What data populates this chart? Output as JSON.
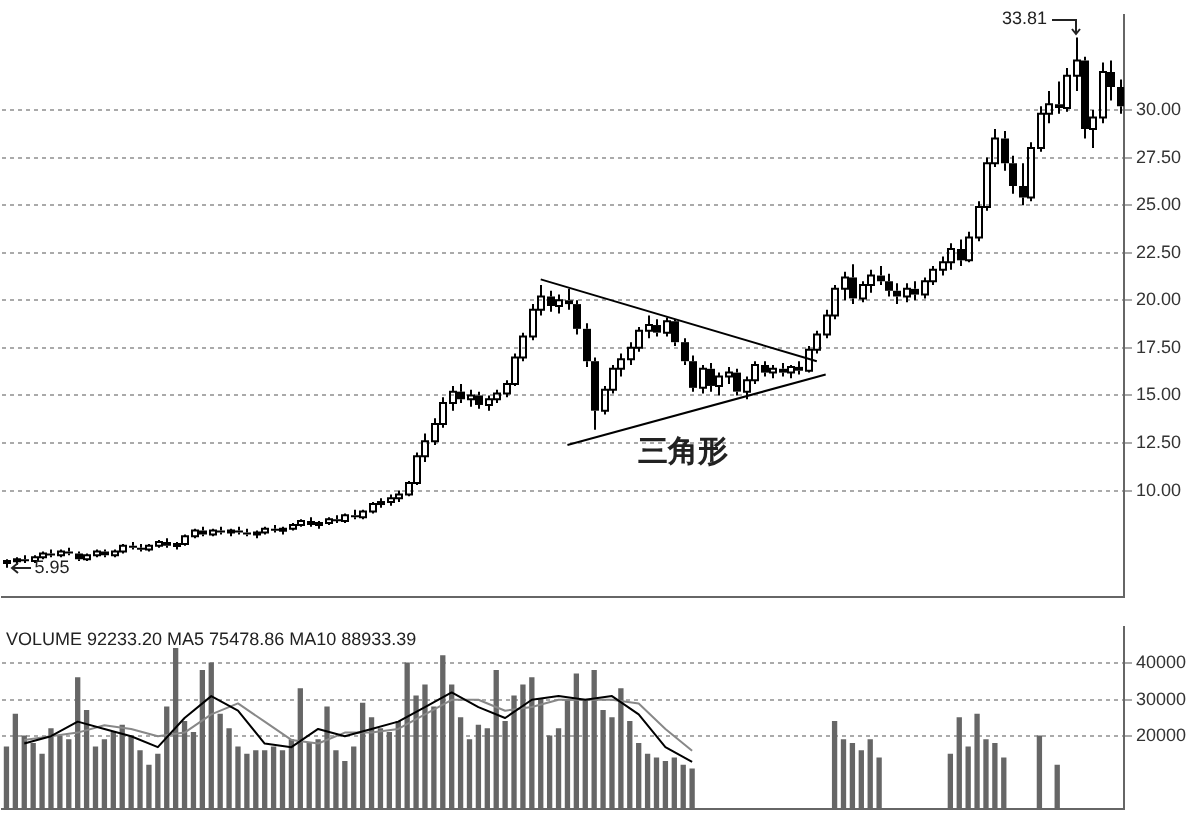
{
  "chart_data": [
    {
      "type": "candlestick",
      "categories": [
        null,
        null,
        null,
        null,
        null,
        null,
        null,
        null,
        null,
        null,
        null,
        null,
        null,
        null,
        null,
        null,
        null,
        null,
        null,
        null,
        null,
        null,
        null,
        null,
        null,
        null,
        null,
        null,
        null,
        null,
        null,
        null,
        null,
        null,
        null,
        null,
        null,
        null,
        null,
        null,
        null,
        null,
        null,
        null,
        null,
        null,
        null,
        null,
        null,
        null,
        null,
        null,
        null,
        null,
        null,
        null,
        null,
        null,
        null,
        null,
        null,
        null,
        null,
        null,
        null,
        null,
        null,
        null,
        null,
        null,
        null,
        null,
        null,
        null,
        null,
        null,
        null,
        null,
        null,
        null,
        null,
        null,
        null,
        null,
        null,
        null,
        null,
        null,
        null,
        null,
        null,
        null,
        null,
        null,
        null,
        null,
        null,
        null,
        null,
        null,
        null,
        null,
        null,
        null,
        null,
        null,
        null,
        null,
        null,
        null,
        null,
        null,
        null,
        null,
        null,
        null,
        null,
        null,
        null,
        null,
        null,
        null,
        null,
        null,
        null,
        null
      ],
      "ohlc": [
        [
          6.2,
          6.4,
          5.95,
          6.3
        ],
        [
          6.3,
          6.5,
          6.1,
          6.4
        ],
        [
          6.4,
          6.6,
          6.2,
          6.3
        ],
        [
          6.3,
          6.6,
          6.2,
          6.5
        ],
        [
          6.5,
          6.8,
          6.4,
          6.7
        ],
        [
          6.7,
          6.9,
          6.5,
          6.6
        ],
        [
          6.6,
          6.9,
          6.5,
          6.8
        ],
        [
          6.8,
          7.0,
          6.6,
          6.7
        ],
        [
          6.7,
          6.8,
          6.3,
          6.4
        ],
        [
          6.4,
          6.7,
          6.3,
          6.6
        ],
        [
          6.6,
          6.9,
          6.5,
          6.8
        ],
        [
          6.8,
          6.9,
          6.5,
          6.6
        ],
        [
          6.6,
          6.9,
          6.5,
          6.8
        ],
        [
          6.8,
          7.2,
          6.7,
          7.1
        ],
        [
          7.1,
          7.3,
          6.9,
          7.0
        ],
        [
          7.0,
          7.2,
          6.8,
          6.9
        ],
        [
          6.9,
          7.2,
          6.8,
          7.1
        ],
        [
          7.1,
          7.4,
          7.0,
          7.3
        ],
        [
          7.3,
          7.5,
          7.0,
          7.1
        ],
        [
          7.1,
          7.3,
          6.9,
          7.2
        ],
        [
          7.2,
          7.7,
          7.1,
          7.6
        ],
        [
          7.6,
          8.0,
          7.5,
          7.9
        ],
        [
          7.9,
          8.1,
          7.6,
          7.7
        ],
        [
          7.7,
          8.0,
          7.6,
          7.9
        ],
        [
          7.9,
          8.1,
          7.7,
          7.8
        ],
        [
          7.8,
          8.0,
          7.6,
          7.9
        ],
        [
          7.9,
          8.1,
          7.7,
          7.8
        ],
        [
          7.8,
          8.0,
          7.6,
          7.7
        ],
        [
          7.7,
          7.9,
          7.5,
          7.8
        ],
        [
          7.8,
          8.1,
          7.7,
          8.0
        ],
        [
          8.0,
          8.2,
          7.8,
          7.9
        ],
        [
          7.9,
          8.1,
          7.7,
          8.0
        ],
        [
          8.0,
          8.3,
          7.9,
          8.2
        ],
        [
          8.2,
          8.5,
          8.1,
          8.4
        ],
        [
          8.4,
          8.6,
          8.1,
          8.2
        ],
        [
          8.2,
          8.4,
          8.0,
          8.3
        ],
        [
          8.3,
          8.6,
          8.2,
          8.5
        ],
        [
          8.5,
          8.7,
          8.3,
          8.4
        ],
        [
          8.4,
          8.8,
          8.3,
          8.7
        ],
        [
          8.7,
          9.0,
          8.5,
          8.6
        ],
        [
          8.6,
          9.0,
          8.5,
          8.9
        ],
        [
          8.9,
          9.4,
          8.8,
          9.3
        ],
        [
          9.3,
          9.6,
          9.1,
          9.4
        ],
        [
          9.4,
          9.8,
          9.2,
          9.6
        ],
        [
          9.6,
          10.0,
          9.4,
          9.8
        ],
        [
          9.8,
          10.5,
          9.7,
          10.4
        ],
        [
          10.4,
          12.0,
          10.3,
          11.8
        ],
        [
          11.8,
          13.0,
          11.5,
          12.6
        ],
        [
          12.6,
          13.8,
          12.4,
          13.5
        ],
        [
          13.5,
          14.9,
          13.3,
          14.6
        ],
        [
          14.6,
          15.5,
          14.2,
          15.2
        ],
        [
          15.2,
          15.6,
          14.6,
          14.8
        ],
        [
          14.8,
          15.3,
          14.4,
          15.0
        ],
        [
          15.0,
          15.2,
          14.3,
          14.5
        ],
        [
          14.5,
          15.0,
          14.2,
          14.8
        ],
        [
          14.8,
          15.3,
          14.6,
          15.1
        ],
        [
          15.1,
          15.8,
          14.9,
          15.6
        ],
        [
          15.6,
          17.2,
          15.5,
          17.0
        ],
        [
          17.0,
          18.3,
          16.8,
          18.1
        ],
        [
          18.1,
          19.8,
          17.9,
          19.5
        ],
        [
          19.5,
          20.8,
          19.2,
          20.2
        ],
        [
          20.2,
          20.5,
          19.4,
          19.7
        ],
        [
          19.7,
          20.3,
          19.3,
          20.0
        ],
        [
          20.0,
          20.6,
          19.5,
          19.8
        ],
        [
          19.8,
          20.0,
          18.2,
          18.5
        ],
        [
          18.5,
          18.8,
          16.5,
          16.8
        ],
        [
          16.8,
          17.0,
          13.2,
          14.2
        ],
        [
          14.2,
          15.5,
          14.0,
          15.3
        ],
        [
          15.3,
          16.6,
          15.1,
          16.4
        ],
        [
          16.4,
          17.2,
          16.0,
          16.9
        ],
        [
          16.9,
          17.8,
          16.6,
          17.5
        ],
        [
          17.5,
          18.6,
          17.3,
          18.4
        ],
        [
          18.4,
          19.2,
          18.0,
          18.7
        ],
        [
          18.7,
          19.0,
          18.1,
          18.3
        ],
        [
          18.3,
          19.1,
          18.1,
          18.9
        ],
        [
          18.9,
          19.0,
          17.6,
          17.8
        ],
        [
          17.8,
          18.0,
          16.6,
          16.8
        ],
        [
          16.8,
          17.1,
          15.2,
          15.4
        ],
        [
          15.4,
          16.6,
          15.1,
          16.4
        ],
        [
          16.4,
          16.7,
          15.2,
          15.5
        ],
        [
          15.5,
          16.2,
          15.0,
          16.0
        ],
        [
          16.0,
          16.5,
          15.6,
          16.2
        ],
        [
          16.2,
          16.4,
          15.0,
          15.2
        ],
        [
          15.2,
          16.0,
          14.8,
          15.8
        ],
        [
          15.8,
          16.8,
          15.6,
          16.6
        ],
        [
          16.6,
          16.8,
          16.0,
          16.2
        ],
        [
          16.2,
          16.6,
          15.9,
          16.4
        ],
        [
          16.4,
          16.7,
          16.0,
          16.2
        ],
        [
          16.2,
          16.6,
          15.9,
          16.5
        ],
        [
          16.5,
          16.8,
          16.1,
          16.3
        ],
        [
          16.3,
          17.6,
          16.2,
          17.4
        ],
        [
          17.4,
          18.4,
          17.2,
          18.2
        ],
        [
          18.2,
          19.5,
          18.0,
          19.2
        ],
        [
          19.2,
          20.8,
          19.0,
          20.6
        ],
        [
          20.6,
          21.5,
          20.0,
          21.2
        ],
        [
          21.2,
          21.9,
          19.8,
          20.1
        ],
        [
          20.1,
          21.0,
          19.9,
          20.8
        ],
        [
          20.8,
          21.6,
          20.4,
          21.3
        ],
        [
          21.3,
          21.8,
          20.8,
          21.0
        ],
        [
          21.0,
          21.4,
          20.2,
          20.5
        ],
        [
          20.5,
          20.9,
          19.8,
          20.2
        ],
        [
          20.2,
          20.9,
          19.9,
          20.6
        ],
        [
          20.6,
          21.0,
          20.0,
          20.3
        ],
        [
          20.3,
          21.2,
          20.1,
          21.0
        ],
        [
          21.0,
          21.8,
          20.8,
          21.6
        ],
        [
          21.6,
          22.3,
          21.3,
          22.0
        ],
        [
          22.0,
          23.0,
          21.6,
          22.7
        ],
        [
          22.7,
          23.2,
          21.8,
          22.1
        ],
        [
          22.1,
          23.6,
          22.0,
          23.3
        ],
        [
          23.3,
          25.2,
          23.1,
          24.9
        ],
        [
          24.9,
          27.5,
          24.7,
          27.2
        ],
        [
          27.2,
          29.0,
          27.0,
          28.5
        ],
        [
          28.5,
          28.9,
          26.8,
          27.2
        ],
        [
          27.2,
          27.6,
          25.6,
          26.0
        ],
        [
          26.0,
          27.2,
          25.0,
          25.4
        ],
        [
          25.4,
          28.3,
          25.2,
          28.0
        ],
        [
          28.0,
          30.2,
          27.8,
          29.8
        ],
        [
          29.8,
          31.0,
          29.3,
          30.3
        ],
        [
          30.3,
          31.5,
          29.8,
          30.1
        ],
        [
          30.1,
          32.2,
          29.9,
          31.8
        ],
        [
          31.8,
          33.81,
          31.0,
          32.6
        ],
        [
          32.6,
          32.8,
          28.5,
          29.0
        ],
        [
          29.0,
          30.0,
          28.0,
          29.6
        ],
        [
          29.6,
          32.5,
          29.3,
          32.0
        ],
        [
          32.0,
          32.6,
          30.5,
          31.2
        ],
        [
          31.2,
          31.6,
          29.8,
          30.2
        ]
      ],
      "color": "#000000",
      "series": [
        {
          "type": "line",
          "color": "#000000",
          "values": [
            null,
            null,
            null,
            null,
            null,
            null,
            null,
            null,
            null,
            null,
            null,
            null,
            null,
            null,
            null,
            null,
            null,
            null,
            null,
            null,
            null,
            null,
            null,
            null,
            null,
            null,
            null,
            null,
            null,
            null,
            null,
            null,
            null,
            null,
            null,
            null,
            null,
            null,
            null,
            null,
            null,
            null,
            null,
            null,
            null,
            null,
            null,
            null,
            null,
            null,
            null,
            null,
            null,
            null,
            null,
            null,
            null,
            null,
            null,
            null,
            21.1,
            null,
            null,
            null,
            null,
            null,
            null,
            null,
            null,
            null,
            null,
            null,
            null,
            null,
            null,
            null,
            null,
            null,
            null,
            null,
            null,
            null,
            null,
            null,
            null,
            null,
            null,
            null,
            null,
            null,
            null,
            16.8,
            null,
            null,
            null,
            null,
            null,
            null,
            null,
            null,
            null,
            null,
            null,
            null,
            null,
            null,
            null,
            null,
            null,
            null,
            null,
            null,
            null,
            null,
            null,
            null,
            null,
            null,
            null,
            null,
            null,
            null,
            null,
            null,
            null,
            null
          ]
        },
        {
          "type": "line",
          "color": "#000000",
          "values": [
            null,
            null,
            null,
            null,
            null,
            null,
            null,
            null,
            null,
            null,
            null,
            null,
            null,
            null,
            null,
            null,
            null,
            null,
            null,
            null,
            null,
            null,
            null,
            null,
            null,
            null,
            null,
            null,
            null,
            null,
            null,
            null,
            null,
            null,
            null,
            null,
            null,
            null,
            null,
            null,
            null,
            null,
            null,
            null,
            null,
            null,
            null,
            null,
            null,
            null,
            null,
            null,
            null,
            null,
            null,
            null,
            null,
            null,
            null,
            null,
            null,
            null,
            null,
            12.4,
            null,
            null,
            null,
            null,
            null,
            null,
            null,
            null,
            null,
            null,
            null,
            null,
            null,
            null,
            null,
            null,
            null,
            null,
            null,
            null,
            null,
            null,
            null,
            null,
            null,
            null,
            null,
            null,
            16.1,
            null,
            null,
            null,
            null,
            null,
            null,
            null,
            null,
            null,
            null,
            null,
            null,
            null,
            null,
            null,
            null,
            null,
            null,
            null,
            null,
            null,
            null,
            null,
            null,
            null,
            null,
            null,
            null,
            null,
            null,
            null,
            null,
            null
          ]
        }
      ],
      "annotations": [
        "5.95",
        "33.81",
        "三角形"
      ],
      "ylim": [
        4.4,
        35
      ],
      "yticks": [
        {
          "value": 10,
          "label": "10.00"
        },
        {
          "value": 12.5,
          "label": "12.50"
        },
        {
          "value": 15,
          "label": "15.00"
        },
        {
          "value": 17.5,
          "label": "17.50"
        },
        {
          "value": 20,
          "label": "20.00"
        },
        {
          "value": 22.5,
          "label": "22.50"
        },
        {
          "value": 25,
          "label": "25.00"
        },
        {
          "value": 27.5,
          "label": "27.50"
        },
        {
          "value": 30,
          "label": "30.00"
        }
      ],
      "grid": "y",
      "tick_labels": "y",
      "marker": "none"
    },
    {
      "type": "bar",
      "title": "VOLUME 92233.20 MA5 75478.86 MA10 88933.39",
      "categories": [
        null,
        null,
        null,
        null,
        null,
        null,
        null,
        null,
        null,
        null,
        null,
        null,
        null,
        null,
        null,
        null,
        null,
        null,
        null,
        null,
        null,
        null,
        null,
        null,
        null,
        null,
        null,
        null,
        null,
        null,
        null,
        null,
        null,
        null,
        null,
        null,
        null,
        null,
        null,
        null,
        null,
        null,
        null,
        null,
        null,
        null,
        null,
        null,
        null,
        null,
        null,
        null,
        null,
        null,
        null,
        null,
        null,
        null,
        null,
        null,
        null,
        null,
        null,
        null,
        null,
        null,
        null,
        null,
        null,
        null,
        null,
        null,
        null,
        null,
        null,
        null,
        null,
        null,
        null,
        null,
        null,
        null,
        null,
        null,
        null,
        null,
        null,
        null,
        null,
        null,
        null,
        null,
        null,
        null,
        null,
        null,
        null,
        null,
        null,
        null,
        null,
        null,
        null,
        null,
        null,
        null,
        null,
        null,
        null,
        null,
        null,
        null,
        null,
        null,
        null,
        null,
        null,
        null,
        null,
        null,
        null,
        null,
        null,
        null,
        null,
        null
      ],
      "series": [
        {
          "color": "#666666",
          "values": [
            17000,
            26000,
            20000,
            18000,
            15000,
            22000,
            20000,
            19000,
            36000,
            27000,
            17000,
            19000,
            21000,
            23000,
            20000,
            16000,
            12000,
            15000,
            28000,
            44000,
            24000,
            21000,
            38000,
            40000,
            26000,
            22000,
            17000,
            15000,
            16000,
            16000,
            17000,
            16000,
            19000,
            33000,
            18000,
            19000,
            28000,
            16000,
            13000,
            17000,
            29000,
            25000,
            22000,
            21000,
            24000,
            40000,
            31000,
            34000,
            28000,
            42000,
            34000,
            25000,
            19000,
            23000,
            22000,
            38000,
            24000,
            31000,
            34000,
            36000,
            30000,
            20000,
            22000,
            30000,
            37000,
            30000,
            38000,
            27000,
            25000,
            33000,
            24000,
            18000,
            15000,
            14000,
            13000,
            14000,
            12000,
            11000,
            null,
            null,
            null,
            null,
            null,
            null,
            null,
            null,
            null,
            null,
            null,
            null,
            null,
            null,
            null,
            24000,
            19000,
            18000,
            16000,
            19000,
            14000,
            null,
            null,
            null,
            null,
            null,
            null,
            null,
            15000,
            25000,
            17000,
            26000,
            19000,
            18000,
            14000,
            null,
            null,
            null,
            20000,
            null,
            12000,
            null,
            null,
            null,
            null,
            null,
            null,
            null
          ]
        },
        {
          "type": "line",
          "color": "#000000",
          "values": [
            null,
            null,
            18000,
            null,
            null,
            20000,
            null,
            null,
            24000,
            null,
            null,
            22000,
            null,
            null,
            20000,
            null,
            null,
            17000,
            null,
            null,
            25000,
            null,
            null,
            31000,
            null,
            null,
            27000,
            null,
            null,
            18000,
            null,
            null,
            17000,
            null,
            null,
            22000,
            null,
            null,
            20000,
            null,
            null,
            22000,
            null,
            null,
            24000,
            null,
            null,
            28000,
            null,
            null,
            32000,
            null,
            null,
            28000,
            null,
            null,
            25000,
            null,
            null,
            30000,
            null,
            null,
            31000,
            null,
            null,
            30000,
            null,
            null,
            31000,
            null,
            null,
            26000,
            null,
            null,
            17000,
            null,
            null,
            13000,
            null,
            null,
            null,
            null,
            null,
            null,
            null,
            null,
            null,
            null,
            null,
            null,
            null,
            null,
            null,
            null,
            null,
            null,
            null,
            null,
            null,
            null,
            null,
            null,
            null,
            null,
            null,
            null,
            null,
            null,
            null,
            null,
            null,
            null,
            null,
            null,
            null,
            null,
            null,
            null,
            null,
            null,
            null,
            null,
            null,
            null,
            null,
            null
          ]
        },
        {
          "type": "line",
          "color": "#888888",
          "values": [
            null,
            null,
            19000,
            null,
            null,
            20000,
            null,
            null,
            21000,
            null,
            null,
            23000,
            null,
            null,
            22000,
            null,
            null,
            20000,
            null,
            null,
            21000,
            null,
            null,
            26000,
            null,
            null,
            29000,
            null,
            null,
            24000,
            null,
            null,
            19000,
            null,
            null,
            18000,
            null,
            null,
            21000,
            null,
            null,
            21000,
            null,
            null,
            22000,
            null,
            null,
            26000,
            null,
            null,
            30000,
            null,
            null,
            30000,
            null,
            null,
            27000,
            null,
            null,
            28000,
            null,
            null,
            30000,
            null,
            null,
            30000,
            null,
            null,
            30000,
            null,
            null,
            29000,
            null,
            null,
            22000,
            null,
            null,
            16000,
            null,
            null,
            null,
            null,
            null,
            null,
            null,
            null,
            null,
            null,
            null,
            null,
            null,
            null,
            null,
            null,
            null,
            null,
            null,
            null,
            null,
            null,
            null,
            null,
            null,
            null,
            null,
            null,
            null,
            null,
            null,
            null,
            null,
            null,
            null,
            null,
            null,
            null,
            null,
            null,
            null,
            null,
            null,
            null,
            null,
            null,
            null,
            null
          ]
        }
      ],
      "ylim": [
        0,
        50000
      ],
      "yticks": [
        20000,
        30000,
        40000
      ],
      "grid": "y",
      "tick_labels": "y",
      "marker": "none"
    }
  ]
}
